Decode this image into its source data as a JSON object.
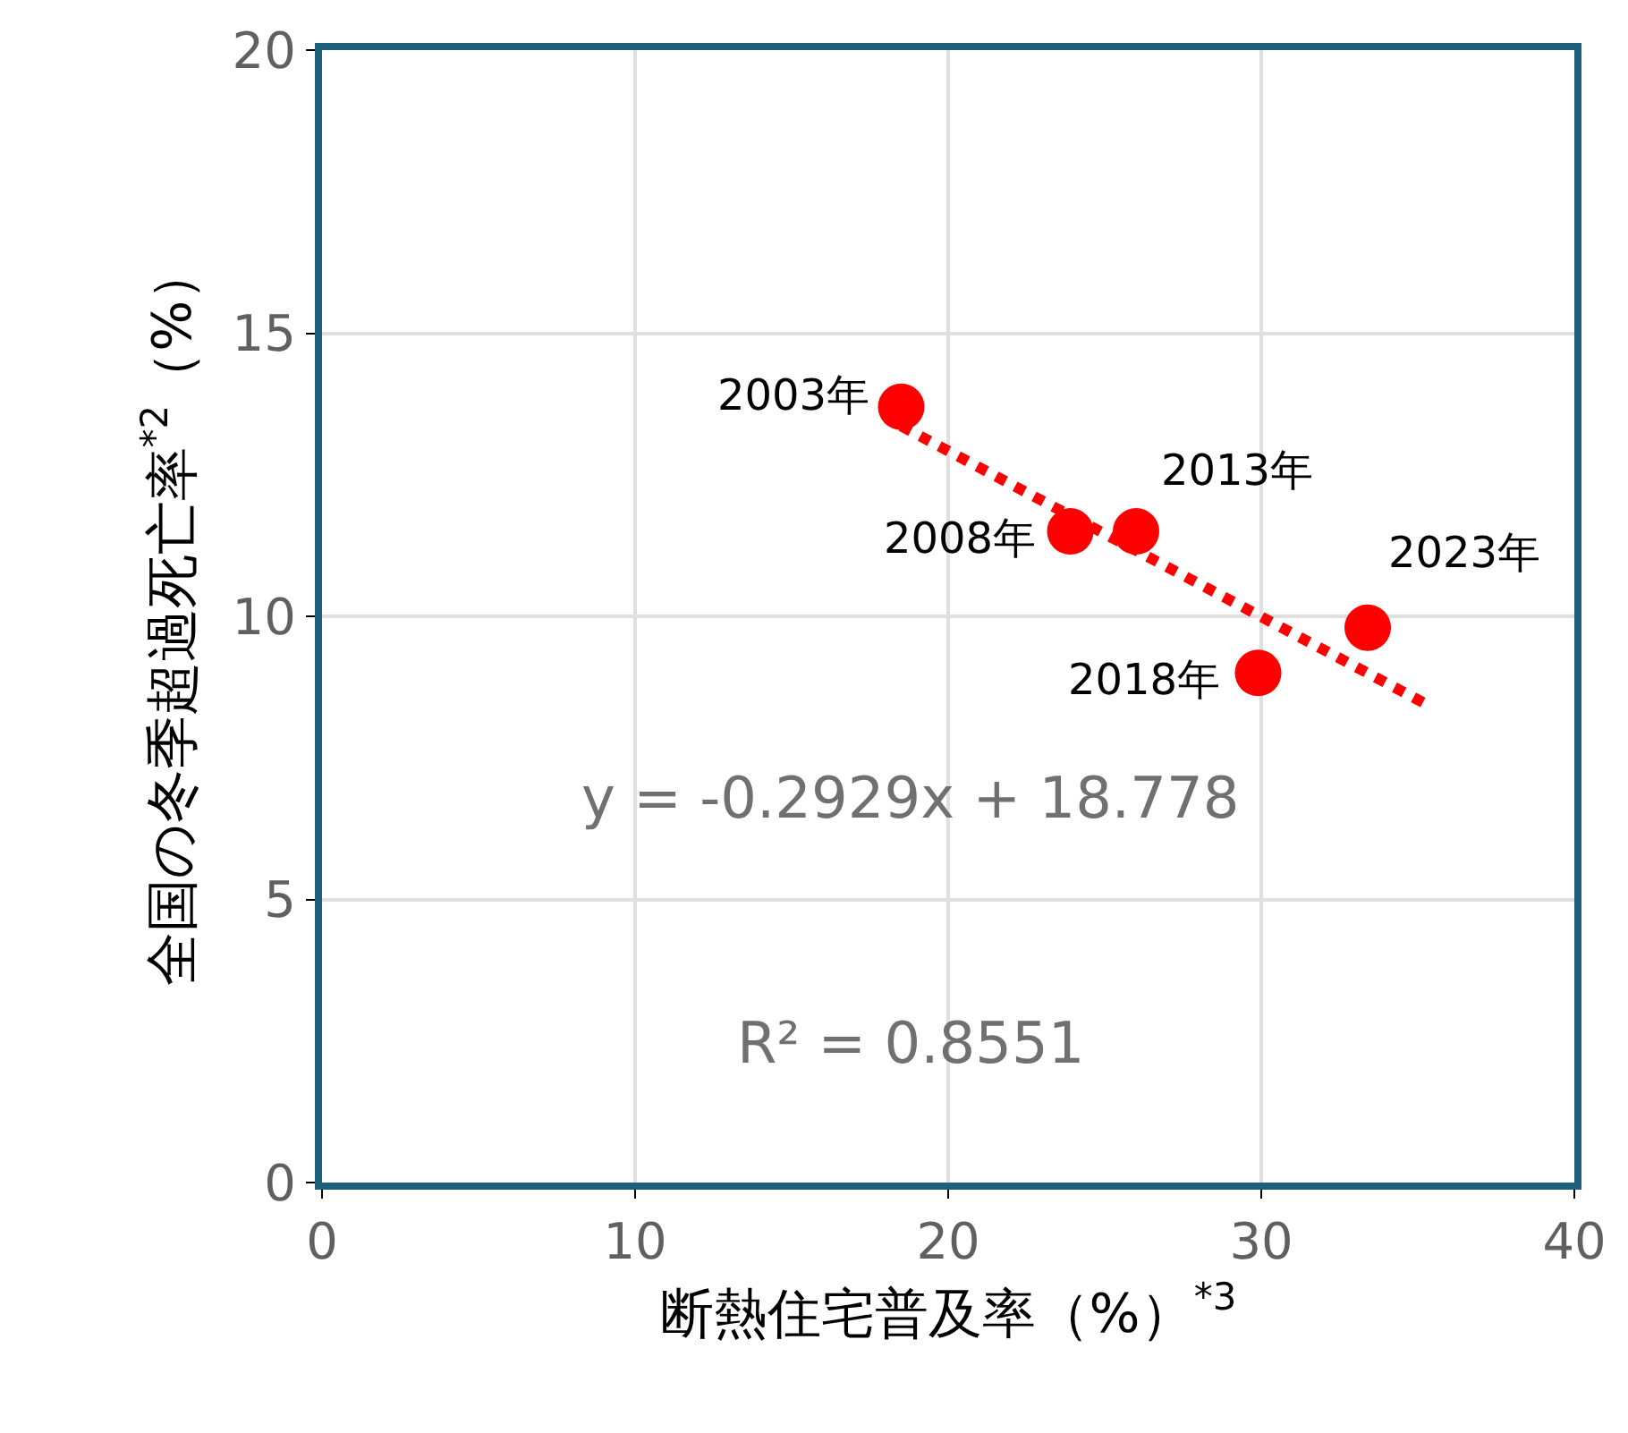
{
  "chart_data": {
    "type": "scatter",
    "xlabel": "断熱住宅普及率（%）$^{*3}$",
    "ylabel": "全国の冬季超過死亡率$^{*2}$（%）",
    "x": [
      18.5,
      23.9,
      26.0,
      29.9,
      33.4
    ],
    "series": [
      {
        "color": "#ff0000",
        "values": [
          13.7,
          11.5,
          11.5,
          9.0,
          9.8
        ],
        "marker": "circle"
      },
      {
        "type": "line",
        "color": "#ff0000",
        "x": [
          18.5,
          35.3
        ],
        "values": [
          13.36,
          8.44
        ],
        "line_style": "dotted",
        "marker": "none"
      }
    ],
    "annotations": [
      {
        "text": "2003年",
        "x": 18.5,
        "y": 13.7
      },
      {
        "text": "2008年",
        "x": 23.9,
        "y": 11.5
      },
      {
        "text": "2013年",
        "x": 26.0,
        "y": 11.5
      },
      {
        "text": "2018年",
        "x": 29.9,
        "y": 9.0
      },
      {
        "text": "2023年",
        "x": 33.4,
        "y": 9.8
      },
      "y = -0.2929x + 18.778",
      "R² = 0.8551"
    ],
    "xlim": [
      0,
      40
    ],
    "xticks": [
      0,
      10,
      20,
      30,
      40
    ],
    "ylim": [
      0,
      20
    ],
    "yticks": [
      0,
      5,
      10,
      15,
      20
    ],
    "grid": true,
    "legend": false
  }
}
